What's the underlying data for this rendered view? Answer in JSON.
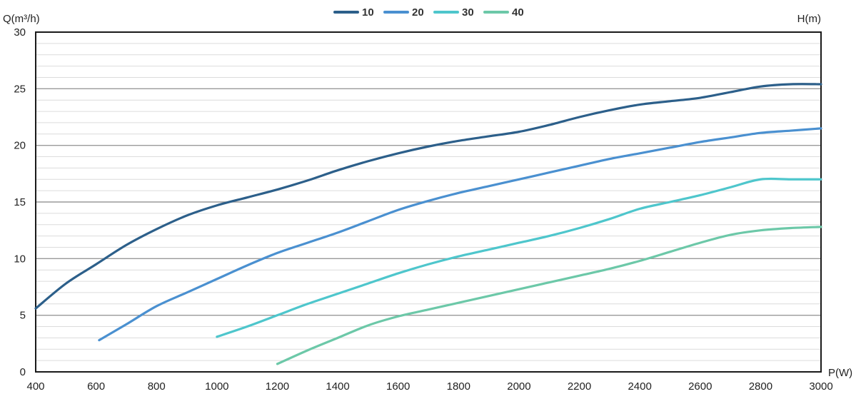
{
  "chart_data": {
    "type": "line",
    "ylabel": "Q(m³/h)",
    "right_label": "H(m)",
    "xlabel": "P(W)",
    "xlim": [
      400,
      3000
    ],
    "ylim": [
      0,
      30
    ],
    "x_ticks": [
      "400",
      "600",
      "800",
      "1000",
      "1200",
      "1400",
      "1600",
      "1800",
      "2000",
      "2200",
      "2400",
      "2600",
      "2800",
      "3000"
    ],
    "y_ticks": [
      "0",
      "5",
      "10",
      "15",
      "20",
      "25",
      "30"
    ],
    "grid": true,
    "legend_position": "top-center",
    "series": [
      {
        "name": "10",
        "color": "#2c5f8a",
        "points": [
          [
            400,
            5.6
          ],
          [
            500,
            7.8
          ],
          [
            600,
            9.5
          ],
          [
            700,
            11.2
          ],
          [
            800,
            12.6
          ],
          [
            900,
            13.8
          ],
          [
            1000,
            14.7
          ],
          [
            1100,
            15.4
          ],
          [
            1200,
            16.1
          ],
          [
            1300,
            16.9
          ],
          [
            1400,
            17.8
          ],
          [
            1500,
            18.6
          ],
          [
            1600,
            19.3
          ],
          [
            1700,
            19.9
          ],
          [
            1800,
            20.4
          ],
          [
            1900,
            20.8
          ],
          [
            2000,
            21.2
          ],
          [
            2100,
            21.8
          ],
          [
            2200,
            22.5
          ],
          [
            2300,
            23.1
          ],
          [
            2400,
            23.6
          ],
          [
            2500,
            23.9
          ],
          [
            2600,
            24.2
          ],
          [
            2700,
            24.7
          ],
          [
            2800,
            25.2
          ],
          [
            2900,
            25.4
          ],
          [
            3000,
            25.4
          ]
        ]
      },
      {
        "name": "20",
        "color": "#4a90d0",
        "points": [
          [
            610,
            2.8
          ],
          [
            700,
            4.2
          ],
          [
            800,
            5.8
          ],
          [
            900,
            7.0
          ],
          [
            1000,
            8.2
          ],
          [
            1100,
            9.4
          ],
          [
            1200,
            10.5
          ],
          [
            1300,
            11.4
          ],
          [
            1400,
            12.3
          ],
          [
            1500,
            13.3
          ],
          [
            1600,
            14.3
          ],
          [
            1700,
            15.1
          ],
          [
            1800,
            15.8
          ],
          [
            1900,
            16.4
          ],
          [
            2000,
            17.0
          ],
          [
            2100,
            17.6
          ],
          [
            2200,
            18.2
          ],
          [
            2300,
            18.8
          ],
          [
            2400,
            19.3
          ],
          [
            2500,
            19.8
          ],
          [
            2600,
            20.3
          ],
          [
            2700,
            20.7
          ],
          [
            2800,
            21.1
          ],
          [
            2900,
            21.3
          ],
          [
            3000,
            21.5
          ]
        ]
      },
      {
        "name": "30",
        "color": "#4ec6cc",
        "points": [
          [
            1000,
            3.1
          ],
          [
            1100,
            4.0
          ],
          [
            1200,
            5.0
          ],
          [
            1300,
            6.0
          ],
          [
            1400,
            6.9
          ],
          [
            1500,
            7.8
          ],
          [
            1600,
            8.7
          ],
          [
            1700,
            9.5
          ],
          [
            1800,
            10.2
          ],
          [
            1900,
            10.8
          ],
          [
            2000,
            11.4
          ],
          [
            2100,
            12.0
          ],
          [
            2200,
            12.7
          ],
          [
            2300,
            13.5
          ],
          [
            2400,
            14.4
          ],
          [
            2500,
            15.0
          ],
          [
            2600,
            15.6
          ],
          [
            2700,
            16.3
          ],
          [
            2800,
            17.0
          ],
          [
            2900,
            17.0
          ],
          [
            3000,
            17.0
          ]
        ]
      },
      {
        "name": "40",
        "color": "#6cc8a8",
        "points": [
          [
            1200,
            0.7
          ],
          [
            1300,
            1.9
          ],
          [
            1400,
            3.0
          ],
          [
            1500,
            4.1
          ],
          [
            1600,
            4.9
          ],
          [
            1700,
            5.5
          ],
          [
            1800,
            6.1
          ],
          [
            1900,
            6.7
          ],
          [
            2000,
            7.3
          ],
          [
            2100,
            7.9
          ],
          [
            2200,
            8.5
          ],
          [
            2300,
            9.1
          ],
          [
            2400,
            9.8
          ],
          [
            2500,
            10.6
          ],
          [
            2600,
            11.4
          ],
          [
            2700,
            12.1
          ],
          [
            2800,
            12.5
          ],
          [
            2900,
            12.7
          ],
          [
            3000,
            12.8
          ]
        ]
      }
    ]
  }
}
